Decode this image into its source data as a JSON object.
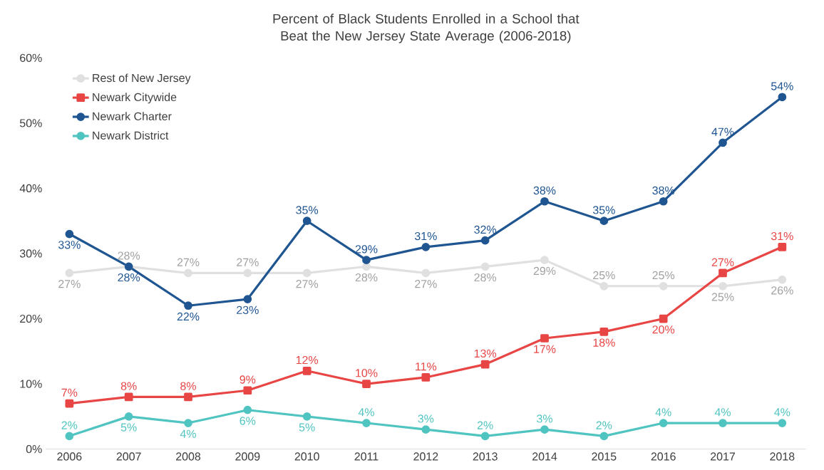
{
  "chart_data": {
    "type": "line",
    "title": "Percent of Black Students Enrolled in a School that Beat the New Jersey State Average (2006-2018)",
    "categories": [
      "2006",
      "2007",
      "2008",
      "2009",
      "2010",
      "2011",
      "2012",
      "2013",
      "2014",
      "2015",
      "2016",
      "2017",
      "2018"
    ],
    "series": [
      {
        "name": "Rest of New Jersey",
        "color": "#e0e0e0",
        "marker": "circle",
        "values": [
          27,
          28,
          27,
          27,
          27,
          28,
          27,
          28,
          29,
          25,
          25,
          25,
          26
        ],
        "value_labels": [
          "27%",
          "28%",
          "27%",
          "27%",
          "27%",
          "28%",
          "27%",
          "28%",
          "29%",
          "25%",
          "25%",
          "25%",
          "26%"
        ]
      },
      {
        "name": "Newark Citywide",
        "color": "#e84545",
        "marker": "square",
        "values": [
          7,
          8,
          8,
          9,
          12,
          10,
          11,
          13,
          17,
          18,
          20,
          27,
          31
        ],
        "value_labels": [
          "7%",
          "8%",
          "8%",
          "9%",
          "12%",
          "10%",
          "11%",
          "13%",
          "17%",
          "18%",
          "20%",
          "27%",
          "31%"
        ]
      },
      {
        "name": "Newark Charter",
        "color": "#1f5591",
        "marker": "circle",
        "values": [
          33,
          28,
          22,
          23,
          35,
          29,
          31,
          32,
          38,
          35,
          38,
          47,
          54
        ],
        "value_labels": [
          "33%",
          "28%",
          "22%",
          "23%",
          "35%",
          "29%",
          "31%",
          "32%",
          "38%",
          "35%",
          "38%",
          "47%",
          "54%"
        ]
      },
      {
        "name": "Newark District",
        "color": "#4fc4c0",
        "marker": "circle",
        "values": [
          2,
          5,
          4,
          6,
          5,
          4,
          3,
          2,
          3,
          2,
          4,
          4,
          4
        ],
        "value_labels": [
          "2%",
          "5%",
          "4%",
          "6%",
          "5%",
          "4%",
          "3%",
          "2%",
          "3%",
          "2%",
          "4%",
          "4%",
          "4%"
        ]
      }
    ],
    "ylim": [
      0,
      60
    ],
    "yticks": [
      {
        "value": 0,
        "label": "0%"
      },
      {
        "value": 10,
        "label": "10%"
      },
      {
        "value": 20,
        "label": "20%"
      },
      {
        "value": 30,
        "label": "30%"
      },
      {
        "value": 40,
        "label": "40%"
      },
      {
        "value": 50,
        "label": "50%"
      },
      {
        "value": 60,
        "label": "60%"
      }
    ],
    "grid": false,
    "legend": "top left"
  }
}
